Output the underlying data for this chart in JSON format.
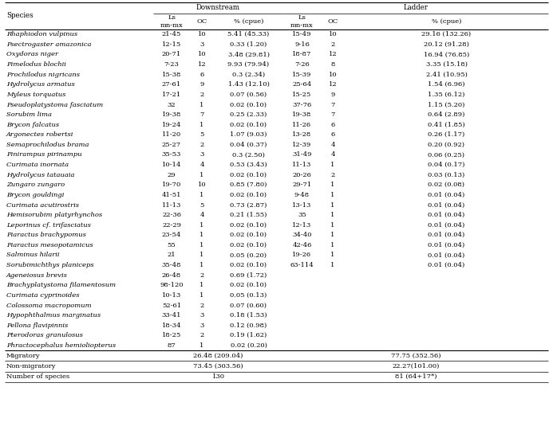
{
  "col_headers": [
    "Species",
    "Ls\nmn-mx",
    "OC",
    "% (cpue)",
    "Ls\nmn-mx",
    "OC",
    "% (cpue)"
  ],
  "group_headers_downstream": "Downstream",
  "group_headers_ladder": "Ladder",
  "rows": [
    [
      "Rhaphiodon vulpinus",
      "21-45",
      "10",
      "5.41 (45.33)",
      "15-49",
      "10",
      "29.16 (132.26)"
    ],
    [
      "Psectrogaster amazonica",
      "12-15",
      "3",
      "0.33 (1.20)",
      "9-16",
      "2",
      "20.12 (91.28)"
    ],
    [
      "Oxydoras niger",
      "20-71",
      "10",
      "3.48 (29.81)",
      "18-87",
      "12",
      "16.94 (76.85)"
    ],
    [
      "Pimelodus blochii",
      "7-23",
      "12",
      "9.93 (79.94)",
      "7-26",
      "8",
      "3.35 (15.18)"
    ],
    [
      "Prochilodus nigricans",
      "15-38",
      "6",
      "0.3 (2.34)",
      "15-39",
      "10",
      "2.41 (10.95)"
    ],
    [
      "Hydrolycus armatus",
      "27-61",
      "9",
      "1.43 (12.10)",
      "25-64",
      "12",
      "1.54 (6.96)"
    ],
    [
      "Myleus torquatus",
      "17-21",
      "2",
      "0.07 (0.56)",
      "15-25",
      "9",
      "1.35 (6.12)"
    ],
    [
      "Pseudoplatystoma fasciatum",
      "32",
      "1",
      "0.02 (0.10)",
      "37-76",
      "7",
      "1.15 (5.20)"
    ],
    [
      "Sorubim lima",
      "19-38",
      "7",
      "0.25 (2.33)",
      "19-38",
      "7",
      "0.64 (2.89)"
    ],
    [
      "Brycon falcatus",
      "19-24",
      "1",
      "0.02 (0.10)",
      "11-26",
      "6",
      "0.41 (1.85)"
    ],
    [
      "Argonectes robertsi",
      "11-20",
      "5",
      "1.07 (9.03)",
      "13-28",
      "6",
      "0.26 (1.17)"
    ],
    [
      "Semaprochilodus brama",
      "25-27",
      "2",
      "0.04 (0.37)",
      "12-39",
      "4",
      "0.20 (0.92)"
    ],
    [
      "Pinirampus pirinampu",
      "35-53",
      "3",
      "0.3 (2.50)",
      "31-49",
      "4",
      "0.06 (0.25)"
    ],
    [
      "Curimata inornata",
      "10-14",
      "4",
      "0.53 (3.43)",
      "11-13",
      "1",
      "0.04 (0.17)"
    ],
    [
      "Hydrolycus tatauaia",
      "29",
      "1",
      "0.02 (0.10)",
      "20-26",
      "2",
      "0.03 (0.13)"
    ],
    [
      "Zungaro zungaro",
      "19-70",
      "10",
      "0.85 (7.80)",
      "29-71",
      "1",
      "0.02 (0.08)"
    ],
    [
      "Brycon gouldingi",
      "41-51",
      "1",
      "0.02 (0.10)",
      "9-48",
      "1",
      "0.01 (0.04)"
    ],
    [
      "Curimata acutirostris",
      "11-13",
      "5",
      "0.73 (2.87)",
      "13-13",
      "1",
      "0.01 (0.04)"
    ],
    [
      "Hemisorubim platyrhynchos",
      "22-36",
      "4",
      "0.21 (1.55)",
      "35",
      "1",
      "0.01 (0.04)"
    ],
    [
      "Leporinus cf. trifasciatus",
      "22-29",
      "1",
      "0.02 (0.10)",
      "12-13",
      "1",
      "0.01 (0.04)"
    ],
    [
      "Piaractus brachypomus",
      "23-54",
      "1",
      "0.02 (0.10)",
      "34-40",
      "1",
      "0.01 (0.04)"
    ],
    [
      "Piaractus mesopotamicus",
      "55",
      "1",
      "0.02 (0.10)",
      "42-46",
      "1",
      "0.01 (0.04)"
    ],
    [
      "Salminus hilarii",
      "21",
      "1",
      "0.05 (0.20)",
      "19-26",
      "1",
      "0.01 (0.04)"
    ],
    [
      "Sorubimichthys planiceps",
      "35-48",
      "1",
      "0.02 (0.10)",
      "63-114",
      "1",
      "0.01 (0.04)"
    ],
    [
      "Ageneiosus brevis",
      "26-48",
      "2",
      "0.69 (1.72)",
      "",
      "",
      ""
    ],
    [
      "Brachyplatystoma filamentosum",
      "98-120",
      "1",
      "0.02 (0.10)",
      "",
      "",
      ""
    ],
    [
      "Curimata cyprinoides",
      "10-13",
      "1",
      "0.05 (0.13)",
      "",
      "",
      ""
    ],
    [
      "Colossoma macropomum",
      "52-61",
      "2",
      "0.07 (0.60)",
      "",
      "",
      ""
    ],
    [
      "Hypophthalmus marginatus",
      "33-41",
      "3",
      "0.18 (1.53)",
      "",
      "",
      ""
    ],
    [
      "Pellona flavipinnis",
      "18-34",
      "3",
      "0.12 (0.98)",
      "",
      "",
      ""
    ],
    [
      "Pterodoras granulosus",
      "18-25",
      "2",
      "0.19 (1.62)",
      "",
      "",
      ""
    ],
    [
      "Phractocephalus hemioliopterus",
      "87",
      "1",
      "0.02 (0.20)",
      "",
      "",
      ""
    ]
  ],
  "summary_rows": [
    [
      "Migratory",
      "26.48 (209.04)",
      "77.75 (352.56)"
    ],
    [
      "Non-migratory",
      "73.45 (303.56)",
      "22.27(101.00)"
    ],
    [
      "Number of species",
      "130",
      "81 (64+17*)"
    ]
  ],
  "bg_color": "#ffffff",
  "text_color": "#000000"
}
